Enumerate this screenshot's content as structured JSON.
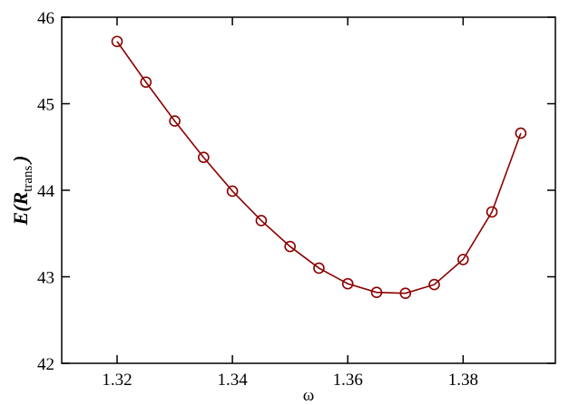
{
  "chart_data": {
    "type": "line",
    "x": [
      1.32,
      1.325,
      1.33,
      1.335,
      1.34,
      1.345,
      1.35,
      1.355,
      1.36,
      1.365,
      1.37,
      1.375,
      1.38,
      1.385,
      1.39
    ],
    "series": [
      {
        "color": "#8b0000",
        "values": [
          45.72,
          45.25,
          44.8,
          44.38,
          43.99,
          43.65,
          43.35,
          43.1,
          42.92,
          42.82,
          42.81,
          42.91,
          43.2,
          43.75,
          44.66
        ]
      }
    ],
    "xlim": [
      1.3104,
      1.396
    ],
    "ylim": [
      42,
      46
    ],
    "xticks": [
      1.32,
      1.34,
      1.36,
      1.38
    ],
    "yticks": [
      42,
      43,
      44,
      45,
      46
    ],
    "xlabel": "ω",
    "ylabel": {
      "main": "E(R",
      "sub": "trans.",
      "end": ")"
    }
  }
}
